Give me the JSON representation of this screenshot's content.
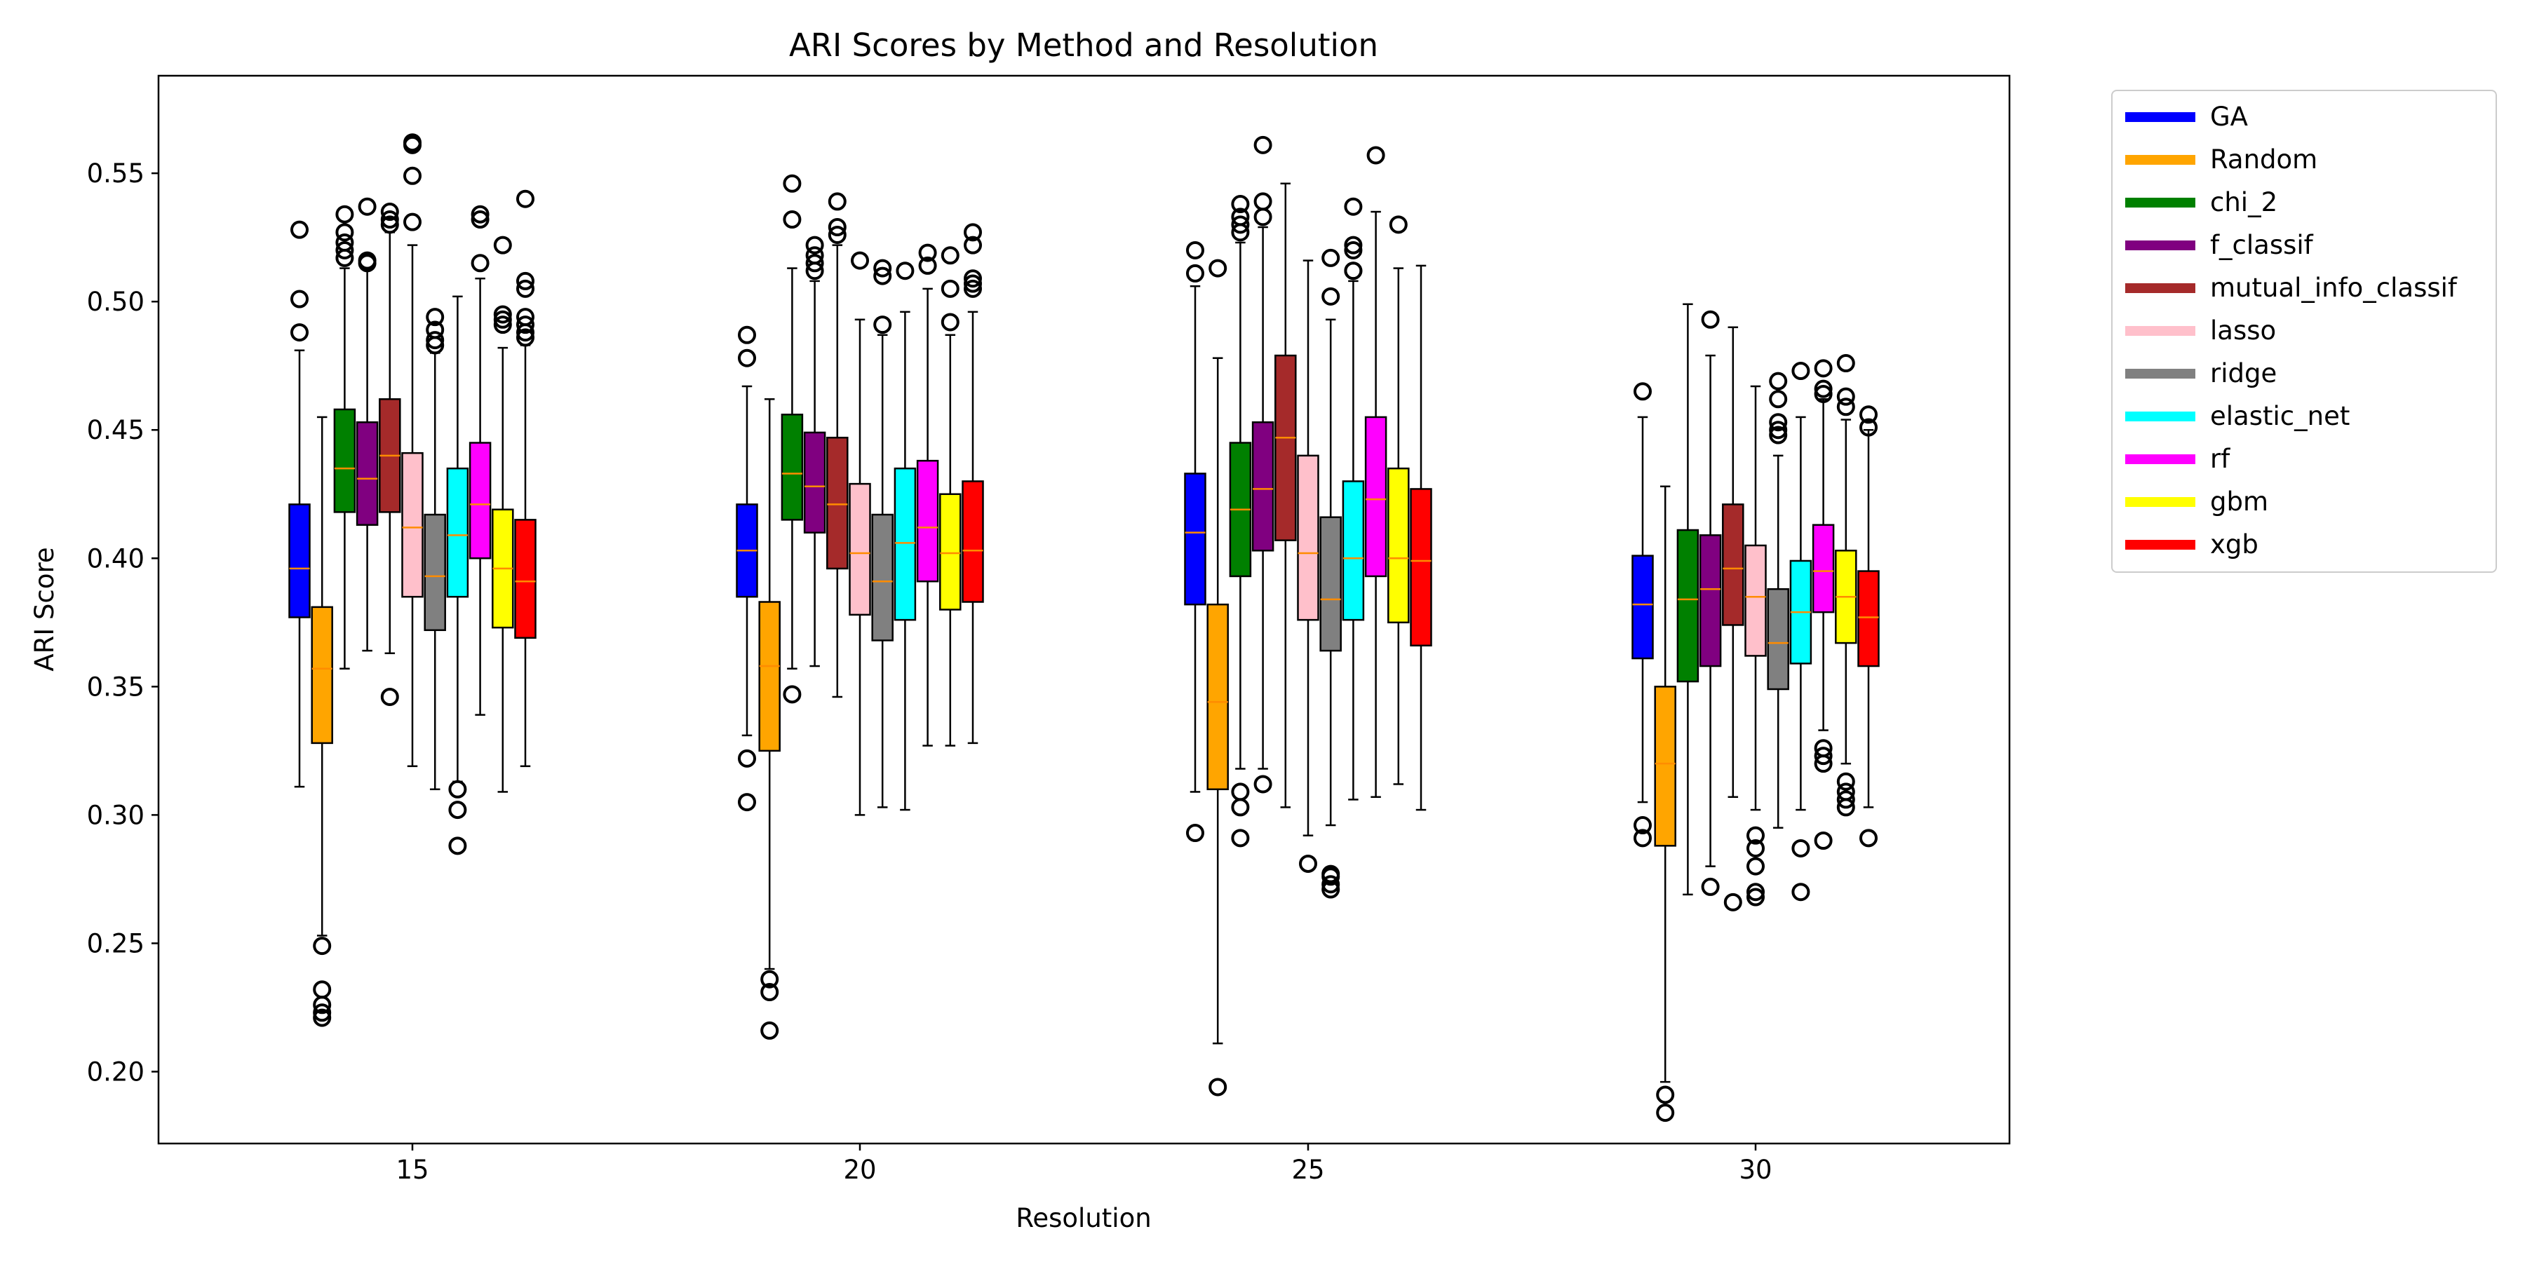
{
  "chart_data": {
    "type": "box",
    "title": "ARI Scores by Method and Resolution",
    "xlabel": "Resolution",
    "ylabel": "ARI Score",
    "categories": [
      "15",
      "20",
      "25",
      "30"
    ],
    "yticks": [
      "0.20",
      "0.25",
      "0.30",
      "0.35",
      "0.40",
      "0.45",
      "0.50",
      "0.55"
    ],
    "ylim": [
      0.172,
      0.588
    ],
    "median_color": "#ff8c00",
    "legend_position": "outside right, top",
    "series": [
      {
        "name": "GA",
        "color": "#0000ff",
        "boxes": [
          {
            "whislo": 0.311,
            "q1": 0.377,
            "med": 0.396,
            "q3": 0.421,
            "whishi": 0.481,
            "fliers": [
              0.488,
              0.501,
              0.528
            ]
          },
          {
            "whislo": 0.331,
            "q1": 0.385,
            "med": 0.403,
            "q3": 0.421,
            "whishi": 0.467,
            "fliers": [
              0.305,
              0.322,
              0.478,
              0.487
            ]
          },
          {
            "whislo": 0.309,
            "q1": 0.382,
            "med": 0.41,
            "q3": 0.433,
            "whishi": 0.506,
            "fliers": [
              0.293,
              0.511,
              0.52
            ]
          },
          {
            "whislo": 0.305,
            "q1": 0.361,
            "med": 0.382,
            "q3": 0.401,
            "whishi": 0.455,
            "fliers": [
              0.291,
              0.296,
              0.465
            ]
          }
        ]
      },
      {
        "name": "Random",
        "color": "#ffa500",
        "boxes": [
          {
            "whislo": 0.253,
            "q1": 0.328,
            "med": 0.357,
            "q3": 0.381,
            "whishi": 0.455,
            "fliers": [
              0.221,
              0.223,
              0.226,
              0.232,
              0.249
            ]
          },
          {
            "whislo": 0.24,
            "q1": 0.325,
            "med": 0.358,
            "q3": 0.383,
            "whishi": 0.462,
            "fliers": [
              0.216,
              0.231,
              0.236
            ]
          },
          {
            "whislo": 0.211,
            "q1": 0.31,
            "med": 0.344,
            "q3": 0.382,
            "whishi": 0.478,
            "fliers": [
              0.194,
              0.513
            ]
          },
          {
            "whislo": 0.196,
            "q1": 0.288,
            "med": 0.32,
            "q3": 0.35,
            "whishi": 0.428,
            "fliers": [
              0.184,
              0.191
            ]
          }
        ]
      },
      {
        "name": "chi_2",
        "color": "#008000",
        "boxes": [
          {
            "whislo": 0.357,
            "q1": 0.418,
            "med": 0.435,
            "q3": 0.458,
            "whishi": 0.513,
            "fliers": [
              0.517,
              0.52,
              0.523,
              0.527,
              0.534
            ]
          },
          {
            "whislo": 0.357,
            "q1": 0.415,
            "med": 0.433,
            "q3": 0.456,
            "whishi": 0.513,
            "fliers": [
              0.347,
              0.532,
              0.546
            ]
          },
          {
            "whislo": 0.318,
            "q1": 0.393,
            "med": 0.419,
            "q3": 0.445,
            "whishi": 0.523,
            "fliers": [
              0.291,
              0.303,
              0.309,
              0.527,
              0.53,
              0.533,
              0.538
            ]
          },
          {
            "whislo": 0.269,
            "q1": 0.352,
            "med": 0.384,
            "q3": 0.411,
            "whishi": 0.499,
            "fliers": []
          }
        ]
      },
      {
        "name": "f_classif",
        "color": "#800080",
        "boxes": [
          {
            "whislo": 0.364,
            "q1": 0.413,
            "med": 0.431,
            "q3": 0.453,
            "whishi": 0.513,
            "fliers": [
              0.515,
              0.516,
              0.537
            ]
          },
          {
            "whislo": 0.358,
            "q1": 0.41,
            "med": 0.428,
            "q3": 0.449,
            "whishi": 0.508,
            "fliers": [
              0.512,
              0.515,
              0.518,
              0.522
            ]
          },
          {
            "whislo": 0.318,
            "q1": 0.403,
            "med": 0.427,
            "q3": 0.453,
            "whishi": 0.529,
            "fliers": [
              0.312,
              0.533,
              0.539,
              0.561
            ]
          },
          {
            "whislo": 0.28,
            "q1": 0.358,
            "med": 0.388,
            "q3": 0.409,
            "whishi": 0.479,
            "fliers": [
              0.272,
              0.493
            ]
          }
        ]
      },
      {
        "name": "mutual_info_classif",
        "color": "#a52a2a",
        "boxes": [
          {
            "whislo": 0.363,
            "q1": 0.418,
            "med": 0.44,
            "q3": 0.462,
            "whishi": 0.527,
            "fliers": [
              0.346,
              0.53,
              0.532,
              0.535
            ]
          },
          {
            "whislo": 0.346,
            "q1": 0.396,
            "med": 0.421,
            "q3": 0.447,
            "whishi": 0.522,
            "fliers": [
              0.526,
              0.529,
              0.539
            ]
          },
          {
            "whislo": 0.303,
            "q1": 0.407,
            "med": 0.447,
            "q3": 0.479,
            "whishi": 0.546,
            "fliers": []
          },
          {
            "whislo": 0.307,
            "q1": 0.374,
            "med": 0.396,
            "q3": 0.421,
            "whishi": 0.49,
            "fliers": [
              0.266
            ]
          }
        ]
      },
      {
        "name": "lasso",
        "color": "#ffc0cb",
        "boxes": [
          {
            "whislo": 0.319,
            "q1": 0.385,
            "med": 0.412,
            "q3": 0.441,
            "whishi": 0.522,
            "fliers": [
              0.531,
              0.549,
              0.561,
              0.562
            ]
          },
          {
            "whislo": 0.3,
            "q1": 0.378,
            "med": 0.402,
            "q3": 0.429,
            "whishi": 0.493,
            "fliers": [
              0.516
            ]
          },
          {
            "whislo": 0.292,
            "q1": 0.376,
            "med": 0.402,
            "q3": 0.44,
            "whishi": 0.516,
            "fliers": [
              0.281
            ]
          },
          {
            "whislo": 0.302,
            "q1": 0.362,
            "med": 0.385,
            "q3": 0.405,
            "whishi": 0.467,
            "fliers": [
              0.268,
              0.27,
              0.28,
              0.287,
              0.292
            ]
          }
        ]
      },
      {
        "name": "ridge",
        "color": "#808080",
        "boxes": [
          {
            "whislo": 0.31,
            "q1": 0.372,
            "med": 0.393,
            "q3": 0.417,
            "whishi": 0.48,
            "fliers": [
              0.483,
              0.485,
              0.489,
              0.494
            ]
          },
          {
            "whislo": 0.303,
            "q1": 0.368,
            "med": 0.391,
            "q3": 0.417,
            "whishi": 0.487,
            "fliers": [
              0.491,
              0.51,
              0.513
            ]
          },
          {
            "whislo": 0.296,
            "q1": 0.364,
            "med": 0.384,
            "q3": 0.416,
            "whishi": 0.493,
            "fliers": [
              0.271,
              0.273,
              0.276,
              0.277,
              0.502,
              0.517
            ]
          },
          {
            "whislo": 0.295,
            "q1": 0.349,
            "med": 0.367,
            "q3": 0.388,
            "whishi": 0.44,
            "fliers": [
              0.448,
              0.45,
              0.453,
              0.462,
              0.469
            ]
          }
        ]
      },
      {
        "name": "elastic_net",
        "color": "#00ffff",
        "boxes": [
          {
            "whislo": 0.313,
            "q1": 0.385,
            "med": 0.409,
            "q3": 0.435,
            "whishi": 0.502,
            "fliers": [
              0.288,
              0.302,
              0.31
            ]
          },
          {
            "whislo": 0.302,
            "q1": 0.376,
            "med": 0.406,
            "q3": 0.435,
            "whishi": 0.496,
            "fliers": [
              0.512
            ]
          },
          {
            "whislo": 0.306,
            "q1": 0.376,
            "med": 0.4,
            "q3": 0.43,
            "whishi": 0.508,
            "fliers": [
              0.512,
              0.512,
              0.52,
              0.522,
              0.537
            ]
          },
          {
            "whislo": 0.302,
            "q1": 0.359,
            "med": 0.379,
            "q3": 0.399,
            "whishi": 0.455,
            "fliers": [
              0.27,
              0.287,
              0.473
            ]
          }
        ]
      },
      {
        "name": "rf",
        "color": "#ff00ff",
        "boxes": [
          {
            "whislo": 0.339,
            "q1": 0.4,
            "med": 0.421,
            "q3": 0.445,
            "whishi": 0.509,
            "fliers": [
              0.515,
              0.532,
              0.534
            ]
          },
          {
            "whislo": 0.327,
            "q1": 0.391,
            "med": 0.412,
            "q3": 0.438,
            "whishi": 0.505,
            "fliers": [
              0.514,
              0.519
            ]
          },
          {
            "whislo": 0.307,
            "q1": 0.393,
            "med": 0.423,
            "q3": 0.455,
            "whishi": 0.535,
            "fliers": [
              0.557
            ]
          },
          {
            "whislo": 0.333,
            "q1": 0.379,
            "med": 0.395,
            "q3": 0.413,
            "whishi": 0.462,
            "fliers": [
              0.29,
              0.32,
              0.323,
              0.326,
              0.464,
              0.466,
              0.474
            ]
          }
        ]
      },
      {
        "name": "gbm",
        "color": "#ffff00",
        "boxes": [
          {
            "whislo": 0.309,
            "q1": 0.373,
            "med": 0.396,
            "q3": 0.419,
            "whishi": 0.482,
            "fliers": [
              0.491,
              0.493,
              0.495,
              0.522
            ]
          },
          {
            "whislo": 0.327,
            "q1": 0.38,
            "med": 0.402,
            "q3": 0.425,
            "whishi": 0.487,
            "fliers": [
              0.492,
              0.505,
              0.518
            ]
          },
          {
            "whislo": 0.312,
            "q1": 0.375,
            "med": 0.4,
            "q3": 0.435,
            "whishi": 0.513,
            "fliers": [
              0.53
            ]
          },
          {
            "whislo": 0.32,
            "q1": 0.367,
            "med": 0.385,
            "q3": 0.403,
            "whishi": 0.454,
            "fliers": [
              0.303,
              0.306,
              0.309,
              0.313,
              0.459,
              0.463,
              0.476
            ]
          }
        ]
      },
      {
        "name": "xgb",
        "color": "#ff0000",
        "boxes": [
          {
            "whislo": 0.319,
            "q1": 0.369,
            "med": 0.391,
            "q3": 0.415,
            "whishi": 0.483,
            "fliers": [
              0.486,
              0.488,
              0.491,
              0.494,
              0.505,
              0.508,
              0.54
            ]
          },
          {
            "whislo": 0.328,
            "q1": 0.383,
            "med": 0.403,
            "q3": 0.43,
            "whishi": 0.496,
            "fliers": [
              0.505,
              0.507,
              0.509,
              0.522,
              0.527
            ]
          },
          {
            "whislo": 0.302,
            "q1": 0.366,
            "med": 0.399,
            "q3": 0.427,
            "whishi": 0.514,
            "fliers": []
          },
          {
            "whislo": 0.303,
            "q1": 0.358,
            "med": 0.377,
            "q3": 0.395,
            "whishi": 0.45,
            "fliers": [
              0.291,
              0.451,
              0.456
            ]
          }
        ]
      }
    ]
  }
}
